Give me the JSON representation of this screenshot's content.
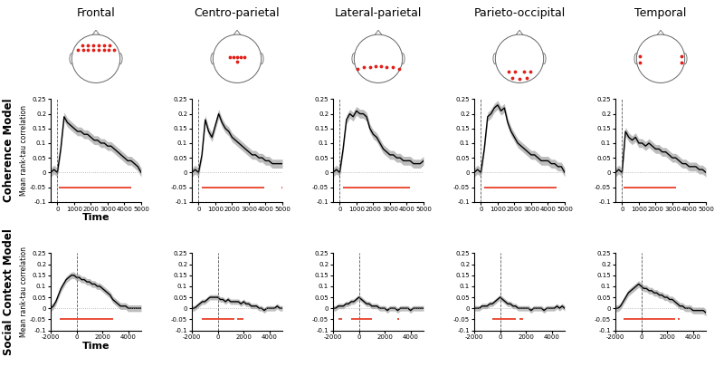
{
  "row_labels": [
    "Coherence Model",
    "Social Context Model"
  ],
  "chart_data": [
    {
      "type": "line",
      "title": "Frontal",
      "x_label": "Time",
      "y_label": "Mean rank-tau correlation",
      "x": [
        -400,
        -200,
        0,
        200,
        400,
        600,
        800,
        1000,
        1200,
        1400,
        1600,
        1800,
        2000,
        2200,
        2400,
        2600,
        2800,
        3000,
        3200,
        3400,
        3600,
        3800,
        4000,
        4200,
        4400,
        4600,
        4800,
        5000
      ],
      "values": [
        0.0,
        0.01,
        0.0,
        0.08,
        0.19,
        0.17,
        0.16,
        0.15,
        0.14,
        0.14,
        0.13,
        0.13,
        0.12,
        0.11,
        0.11,
        0.1,
        0.1,
        0.09,
        0.09,
        0.08,
        0.07,
        0.06,
        0.05,
        0.04,
        0.04,
        0.03,
        0.02,
        0.0
      ],
      "error": 0.015,
      "color": "#000000",
      "significance": [
        [
          100,
          4400
        ]
      ],
      "significance_y": -0.05,
      "hline": 0,
      "vline": 0,
      "xlim": [
        -400,
        5000
      ],
      "xticks": [
        0,
        1000,
        2000,
        3000,
        4000,
        5000
      ],
      "ylim": [
        -0.1,
        0.25
      ],
      "yticks": [
        -0.1,
        -0.05,
        0,
        0.05,
        0.1,
        0.15,
        0.2,
        0.25
      ]
    },
    {
      "type": "line",
      "title": "Centro-parietal",
      "x": [
        -400,
        -200,
        0,
        200,
        400,
        600,
        800,
        1000,
        1200,
        1400,
        1600,
        1800,
        2000,
        2200,
        2400,
        2600,
        2800,
        3000,
        3200,
        3400,
        3600,
        3800,
        4000,
        4200,
        4400,
        4600,
        4800,
        5000
      ],
      "values": [
        0.0,
        0.01,
        0.0,
        0.06,
        0.18,
        0.14,
        0.12,
        0.16,
        0.2,
        0.17,
        0.15,
        0.14,
        0.12,
        0.11,
        0.1,
        0.09,
        0.08,
        0.07,
        0.06,
        0.06,
        0.05,
        0.05,
        0.04,
        0.04,
        0.03,
        0.03,
        0.03,
        0.03
      ],
      "error": 0.015,
      "color": "#000000",
      "significance": [
        [
          200,
          3900
        ],
        [
          4950,
          5000
        ]
      ],
      "significance_y": -0.05,
      "hline": 0,
      "vline": 0,
      "xlim": [
        -400,
        5000
      ],
      "xticks": [
        0,
        1000,
        2000,
        3000,
        4000,
        5000
      ],
      "ylim": [
        -0.1,
        0.25
      ],
      "yticks": [
        -0.1,
        -0.05,
        0,
        0.05,
        0.1,
        0.15,
        0.2,
        0.25
      ]
    },
    {
      "type": "line",
      "title": "Lateral-parietal",
      "x": [
        -400,
        -200,
        0,
        200,
        400,
        600,
        800,
        1000,
        1200,
        1400,
        1600,
        1800,
        2000,
        2200,
        2400,
        2600,
        2800,
        3000,
        3200,
        3400,
        3600,
        3800,
        4000,
        4200,
        4400,
        4600,
        4800,
        5000
      ],
      "values": [
        0.0,
        0.01,
        0.0,
        0.08,
        0.18,
        0.2,
        0.19,
        0.21,
        0.2,
        0.2,
        0.19,
        0.15,
        0.13,
        0.12,
        0.1,
        0.08,
        0.07,
        0.06,
        0.06,
        0.05,
        0.05,
        0.04,
        0.04,
        0.04,
        0.03,
        0.03,
        0.03,
        0.04
      ],
      "error": 0.015,
      "color": "#000000",
      "significance": [
        [
          200,
          4200
        ]
      ],
      "significance_y": -0.05,
      "hline": 0,
      "vline": 0,
      "xlim": [
        -400,
        5000
      ],
      "xticks": [
        0,
        1000,
        2000,
        3000,
        4000,
        5000
      ],
      "ylim": [
        -0.1,
        0.25
      ],
      "yticks": [
        -0.1,
        -0.05,
        0,
        0.05,
        0.1,
        0.15,
        0.2,
        0.25
      ]
    },
    {
      "type": "line",
      "title": "Parieto-occipital",
      "x": [
        -400,
        -200,
        0,
        200,
        400,
        600,
        800,
        1000,
        1200,
        1400,
        1600,
        1800,
        2000,
        2200,
        2400,
        2600,
        2800,
        3000,
        3200,
        3400,
        3600,
        3800,
        4000,
        4200,
        4400,
        4600,
        4800,
        5000
      ],
      "values": [
        0.0,
        0.01,
        0.0,
        0.08,
        0.19,
        0.2,
        0.22,
        0.23,
        0.21,
        0.22,
        0.17,
        0.14,
        0.12,
        0.1,
        0.09,
        0.08,
        0.07,
        0.06,
        0.06,
        0.05,
        0.04,
        0.04,
        0.04,
        0.03,
        0.03,
        0.02,
        0.02,
        0.0
      ],
      "error": 0.015,
      "color": "#000000",
      "significance": [
        [
          200,
          4500
        ]
      ],
      "significance_y": -0.05,
      "hline": 0,
      "vline": 0,
      "xlim": [
        -400,
        5000
      ],
      "xticks": [
        0,
        1000,
        2000,
        3000,
        4000,
        5000
      ],
      "ylim": [
        -0.1,
        0.25
      ],
      "yticks": [
        -0.1,
        -0.05,
        0,
        0.05,
        0.1,
        0.15,
        0.2,
        0.25
      ]
    },
    {
      "type": "line",
      "title": "Temporal",
      "x": [
        -400,
        -200,
        0,
        200,
        400,
        600,
        800,
        1000,
        1200,
        1400,
        1600,
        1800,
        2000,
        2200,
        2400,
        2600,
        2800,
        3000,
        3200,
        3400,
        3600,
        3800,
        4000,
        4200,
        4400,
        4600,
        4800,
        5000
      ],
      "values": [
        0.0,
        0.01,
        0.0,
        0.14,
        0.12,
        0.11,
        0.12,
        0.1,
        0.1,
        0.09,
        0.1,
        0.09,
        0.08,
        0.08,
        0.07,
        0.07,
        0.06,
        0.05,
        0.05,
        0.04,
        0.03,
        0.03,
        0.02,
        0.02,
        0.02,
        0.01,
        0.01,
        0.0
      ],
      "error": 0.015,
      "color": "#000000",
      "significance": [
        [
          100,
          3200
        ]
      ],
      "significance_y": -0.05,
      "hline": 0,
      "vline": 0,
      "xlim": [
        -400,
        5000
      ],
      "xticks": [
        0,
        1000,
        2000,
        3000,
        4000,
        5000
      ],
      "ylim": [
        -0.1,
        0.25
      ],
      "yticks": [
        -0.1,
        -0.05,
        0,
        0.05,
        0.1,
        0.15,
        0.2,
        0.25
      ]
    },
    {
      "type": "line",
      "x_label": "Time",
      "y_label": "Mean rank-tau correlation",
      "x": [
        -2000,
        -1800,
        -1600,
        -1400,
        -1200,
        -1000,
        -800,
        -600,
        -400,
        -200,
        0,
        200,
        400,
        600,
        800,
        1000,
        1200,
        1400,
        1600,
        1800,
        2000,
        2200,
        2400,
        2600,
        2800,
        3000,
        3200,
        3400,
        3600,
        3800,
        4000,
        4200,
        4400,
        4600,
        4800,
        5000
      ],
      "values": [
        0.0,
        0.01,
        0.03,
        0.06,
        0.09,
        0.11,
        0.13,
        0.14,
        0.15,
        0.15,
        0.14,
        0.14,
        0.13,
        0.13,
        0.12,
        0.12,
        0.11,
        0.11,
        0.1,
        0.1,
        0.09,
        0.08,
        0.07,
        0.06,
        0.04,
        0.03,
        0.02,
        0.01,
        0.01,
        0.01,
        0.0,
        0.0,
        0.0,
        0.0,
        0.0,
        0.0
      ],
      "error": 0.015,
      "color": "#000000",
      "significance": [
        [
          -1300,
          2800
        ]
      ],
      "significance_y": -0.05,
      "hline": 0,
      "vline": 0,
      "xlim": [
        -2000,
        5000
      ],
      "xticks": [
        -2000,
        0,
        2000,
        4000
      ],
      "ylim": [
        -0.1,
        0.25
      ],
      "yticks": [
        -0.1,
        -0.05,
        0,
        0.05,
        0.1,
        0.15,
        0.2,
        0.25
      ]
    },
    {
      "type": "line",
      "x": [
        -2000,
        -1800,
        -1600,
        -1400,
        -1200,
        -1000,
        -800,
        -600,
        -400,
        -200,
        0,
        200,
        400,
        600,
        800,
        1000,
        1200,
        1400,
        1600,
        1800,
        2000,
        2200,
        2400,
        2600,
        2800,
        3000,
        3200,
        3400,
        3600,
        3800,
        4000,
        4200,
        4400,
        4600,
        4800,
        5000
      ],
      "values": [
        0.0,
        0.0,
        0.01,
        0.02,
        0.03,
        0.03,
        0.04,
        0.05,
        0.05,
        0.05,
        0.05,
        0.04,
        0.04,
        0.03,
        0.04,
        0.03,
        0.03,
        0.03,
        0.03,
        0.02,
        0.03,
        0.02,
        0.02,
        0.01,
        0.01,
        0.01,
        0.0,
        0.0,
        -0.01,
        0.0,
        0.0,
        0.0,
        0.0,
        0.01,
        0.0,
        0.0
      ],
      "error": 0.012,
      "color": "#000000",
      "significance": [
        [
          -1200,
          1300
        ],
        [
          1500,
          2000
        ]
      ],
      "significance_y": -0.05,
      "hline": 0,
      "vline": 0,
      "xlim": [
        -2000,
        5000
      ],
      "xticks": [
        -2000,
        0,
        2000,
        4000
      ],
      "ylim": [
        -0.1,
        0.25
      ],
      "yticks": [
        -0.1,
        -0.05,
        0,
        0.05,
        0.1,
        0.15,
        0.2,
        0.25
      ]
    },
    {
      "type": "line",
      "x": [
        -2000,
        -1800,
        -1600,
        -1400,
        -1200,
        -1000,
        -800,
        -600,
        -400,
        -200,
        0,
        200,
        400,
        600,
        800,
        1000,
        1200,
        1400,
        1600,
        1800,
        2000,
        2200,
        2400,
        2600,
        2800,
        3000,
        3200,
        3400,
        3600,
        3800,
        4000,
        4200,
        4400,
        4600,
        4800,
        5000
      ],
      "values": [
        0.0,
        0.0,
        0.01,
        0.01,
        0.01,
        0.02,
        0.02,
        0.03,
        0.03,
        0.04,
        0.05,
        0.04,
        0.03,
        0.02,
        0.02,
        0.01,
        0.01,
        0.01,
        0.0,
        0.0,
        0.0,
        -0.01,
        0.0,
        0.0,
        0.0,
        -0.01,
        0.0,
        0.0,
        0.0,
        0.0,
        -0.01,
        0.0,
        0.0,
        0.0,
        0.0,
        0.0
      ],
      "error": 0.012,
      "color": "#000000",
      "significance": [
        [
          -1600,
          -1300
        ],
        [
          -600,
          1000
        ],
        [
          3000,
          3100
        ]
      ],
      "significance_y": -0.05,
      "hline": 0,
      "vline": 0,
      "xlim": [
        -2000,
        5000
      ],
      "xticks": [
        -2000,
        0,
        2000,
        4000
      ],
      "ylim": [
        -0.1,
        0.25
      ],
      "yticks": [
        -0.1,
        -0.05,
        0,
        0.05,
        0.1,
        0.15,
        0.2,
        0.25
      ]
    },
    {
      "type": "line",
      "x": [
        -2000,
        -1800,
        -1600,
        -1400,
        -1200,
        -1000,
        -800,
        -600,
        -400,
        -200,
        0,
        200,
        400,
        600,
        800,
        1000,
        1200,
        1400,
        1600,
        1800,
        2000,
        2200,
        2400,
        2600,
        2800,
        3000,
        3200,
        3400,
        3600,
        3800,
        4000,
        4200,
        4400,
        4600,
        4800,
        5000
      ],
      "values": [
        0.0,
        0.0,
        0.0,
        0.01,
        0.01,
        0.01,
        0.02,
        0.02,
        0.03,
        0.04,
        0.05,
        0.04,
        0.03,
        0.02,
        0.02,
        0.01,
        0.01,
        0.0,
        0.0,
        0.0,
        0.0,
        0.0,
        -0.01,
        0.0,
        0.0,
        0.0,
        0.0,
        -0.01,
        0.0,
        0.0,
        0.0,
        0.0,
        0.01,
        0.0,
        0.01,
        0.0
      ],
      "error": 0.012,
      "color": "#000000",
      "significance": [
        [
          -600,
          1200
        ],
        [
          1500,
          1800
        ]
      ],
      "significance_y": -0.05,
      "hline": 0,
      "vline": 0,
      "xlim": [
        -2000,
        5000
      ],
      "xticks": [
        -2000,
        0,
        2000,
        4000
      ],
      "ylim": [
        -0.1,
        0.25
      ],
      "yticks": [
        -0.1,
        -0.05,
        0,
        0.05,
        0.1,
        0.15,
        0.2,
        0.25
      ]
    },
    {
      "type": "line",
      "x": [
        -2000,
        -1800,
        -1600,
        -1400,
        -1200,
        -1000,
        -800,
        -600,
        -400,
        -200,
        0,
        200,
        400,
        600,
        800,
        1000,
        1200,
        1400,
        1600,
        1800,
        2000,
        2200,
        2400,
        2600,
        2800,
        3000,
        3200,
        3400,
        3600,
        3800,
        4000,
        4200,
        4400,
        4600,
        4800,
        5000
      ],
      "values": [
        0.0,
        0.0,
        0.01,
        0.03,
        0.05,
        0.07,
        0.08,
        0.09,
        0.1,
        0.11,
        0.1,
        0.09,
        0.09,
        0.08,
        0.08,
        0.07,
        0.07,
        0.06,
        0.06,
        0.05,
        0.05,
        0.04,
        0.04,
        0.03,
        0.02,
        0.01,
        0.01,
        0.0,
        0.0,
        0.0,
        -0.01,
        -0.01,
        -0.01,
        -0.01,
        -0.01,
        -0.02
      ],
      "error": 0.015,
      "color": "#000000",
      "significance": [
        [
          -1400,
          2600
        ],
        [
          2800,
          3000
        ]
      ],
      "significance_y": -0.05,
      "hline": 0,
      "vline": 0,
      "xlim": [
        -2000,
        5000
      ],
      "xticks": [
        -2000,
        0,
        2000,
        4000
      ],
      "ylim": [
        -0.1,
        0.25
      ],
      "yticks": [
        -0.1,
        -0.05,
        0,
        0.05,
        0.1,
        0.15,
        0.2,
        0.25
      ]
    }
  ]
}
